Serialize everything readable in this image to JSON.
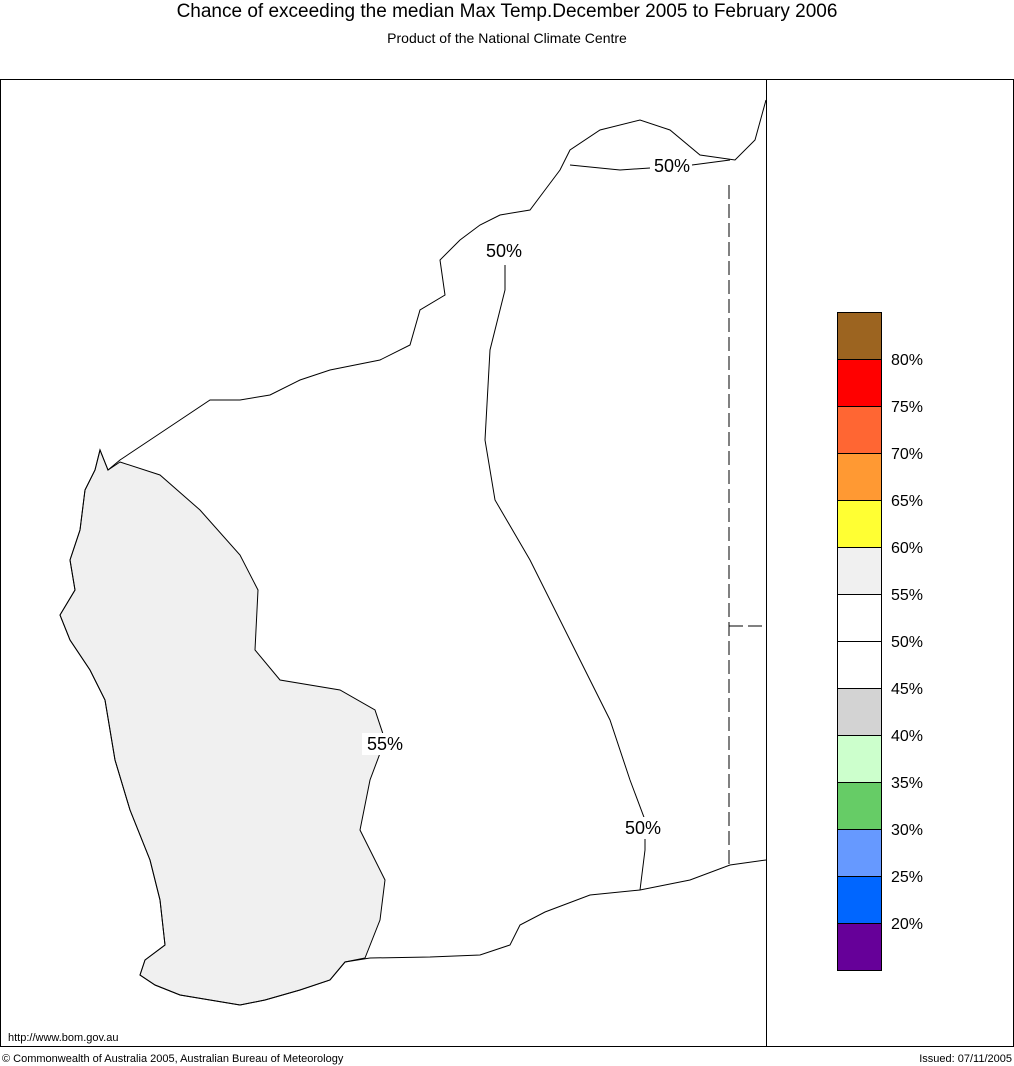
{
  "header": {
    "title": "Chance of exceeding the median Max Temp.December 2005 to February 2006",
    "subtitle": "Product of the National Climate Centre"
  },
  "map": {
    "contour_labels": [
      "50%",
      "50%",
      "55%",
      "50%"
    ]
  },
  "legend": {
    "colors": [
      "#9c6420",
      "#ff0000",
      "#ff6633",
      "#ff9933",
      "#ffff33",
      "#f0f0f0",
      "#ffffff",
      "#ffffff",
      "#d3d3d3",
      "#ccffcc",
      "#66cc66",
      "#6699ff",
      "#0066ff",
      "#660099"
    ],
    "labels": [
      "80%",
      "75%",
      "70%",
      "65%",
      "60%",
      "55%",
      "50%",
      "45%",
      "40%",
      "35%",
      "30%",
      "25%",
      "20%"
    ]
  },
  "footer": {
    "url": "http://www.bom.gov.au",
    "copyright": "© Commonwealth of Australia 2005, Australian Bureau of Meteorology",
    "issued": "Issued: 07/11/2005"
  }
}
